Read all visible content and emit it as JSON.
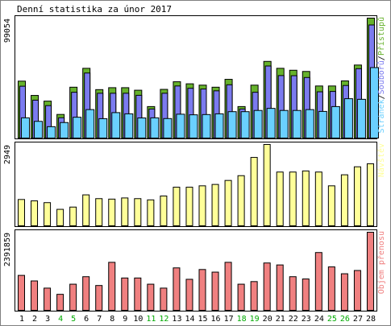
{
  "chart_data": [
    {
      "type": "bar",
      "title": "Denní statistika za únor 2017",
      "ylabel": "Stránek/Souborů/Přístupů",
      "ylabel_parts": [
        "Stránek",
        "/",
        "Souborů",
        "/",
        "Přístupů"
      ],
      "ymax_label": "99054",
      "ylim": [
        0,
        99054
      ],
      "categories": [
        "1",
        "2",
        "3",
        "4",
        "5",
        "6",
        "7",
        "8",
        "9",
        "10",
        "11",
        "12",
        "13",
        "14",
        "15",
        "16",
        "17",
        "18",
        "19",
        "20",
        "21",
        "22",
        "23",
        "24",
        "25",
        "26",
        "27",
        "28"
      ],
      "weekend_days": [
        "4",
        "5",
        "11",
        "12",
        "18",
        "19",
        "25",
        "26"
      ],
      "series": [
        {
          "name": "Přístupů",
          "color": "#66b22c",
          "values": [
            47000,
            35200,
            30500,
            19500,
            42000,
            57600,
            40000,
            41600,
            41600,
            39500,
            26000,
            40200,
            46500,
            44800,
            43700,
            42000,
            48500,
            26000,
            43700,
            63300,
            57600,
            56000,
            55000,
            43000,
            43000,
            47200,
            60300,
            99054
          ]
        },
        {
          "name": "Souborů",
          "color": "#7b7bef",
          "values": [
            42800,
            31300,
            26800,
            16800,
            37800,
            53700,
            37000,
            37000,
            37000,
            35300,
            24000,
            37000,
            43000,
            41100,
            40500,
            39000,
            44000,
            24000,
            37800,
            59500,
            51600,
            51500,
            50000,
            38200,
            38500,
            43400,
            57300,
            93400
          ]
        },
        {
          "name": "Stránek",
          "color": "#6ad0ff",
          "values": [
            16700,
            13800,
            9400,
            12800,
            17200,
            23500,
            16000,
            21000,
            20000,
            16600,
            16700,
            16100,
            19700,
            19200,
            19400,
            20000,
            21800,
            21800,
            22800,
            24500,
            22800,
            22800,
            23500,
            22000,
            26000,
            32500,
            32000,
            58200
          ]
        }
      ]
    },
    {
      "type": "bar",
      "ylabel": "Návštěv",
      "ymax_label": "2949",
      "ylim": [
        0,
        2949
      ],
      "categories": [
        "1",
        "2",
        "3",
        "4",
        "5",
        "6",
        "7",
        "8",
        "9",
        "10",
        "11",
        "12",
        "13",
        "14",
        "15",
        "16",
        "17",
        "18",
        "19",
        "20",
        "21",
        "22",
        "23",
        "24",
        "25",
        "26",
        "27",
        "28"
      ],
      "series": [
        {
          "name": "Návštěv",
          "color": "#ffff99",
          "values": [
            954,
            904,
            840,
            597,
            679,
            1122,
            985,
            968,
            1010,
            985,
            940,
            1081,
            1400,
            1400,
            1450,
            1500,
            1645,
            1818,
            2480,
            2949,
            1950,
            1950,
            1990,
            1950,
            1450,
            1850,
            2140,
            2250
          ]
        }
      ]
    },
    {
      "type": "bar",
      "ylabel": "Objem přenosu",
      "ymax_label": "2391859",
      "ylim": [
        0,
        2391859
      ],
      "categories": [
        "1",
        "2",
        "3",
        "4",
        "5",
        "6",
        "7",
        "8",
        "9",
        "10",
        "11",
        "12",
        "13",
        "14",
        "15",
        "16",
        "17",
        "18",
        "19",
        "20",
        "21",
        "22",
        "23",
        "24",
        "25",
        "26",
        "27",
        "28"
      ],
      "series": [
        {
          "name": "Objem přenosu",
          "color": "#f08080",
          "values": [
            1070000,
            900000,
            680000,
            490000,
            800000,
            1030000,
            760000,
            1470000,
            990000,
            990000,
            800000,
            680000,
            1300000,
            950000,
            1250000,
            1170000,
            1470000,
            800000,
            880000,
            1450000,
            1390000,
            1030000,
            960000,
            1770000,
            1330000,
            1120000,
            1220000,
            2391859
          ]
        }
      ]
    }
  ],
  "colors": {
    "frame": "#000000",
    "weekday_label": "#000000",
    "weekend_label": "#00aa00"
  }
}
